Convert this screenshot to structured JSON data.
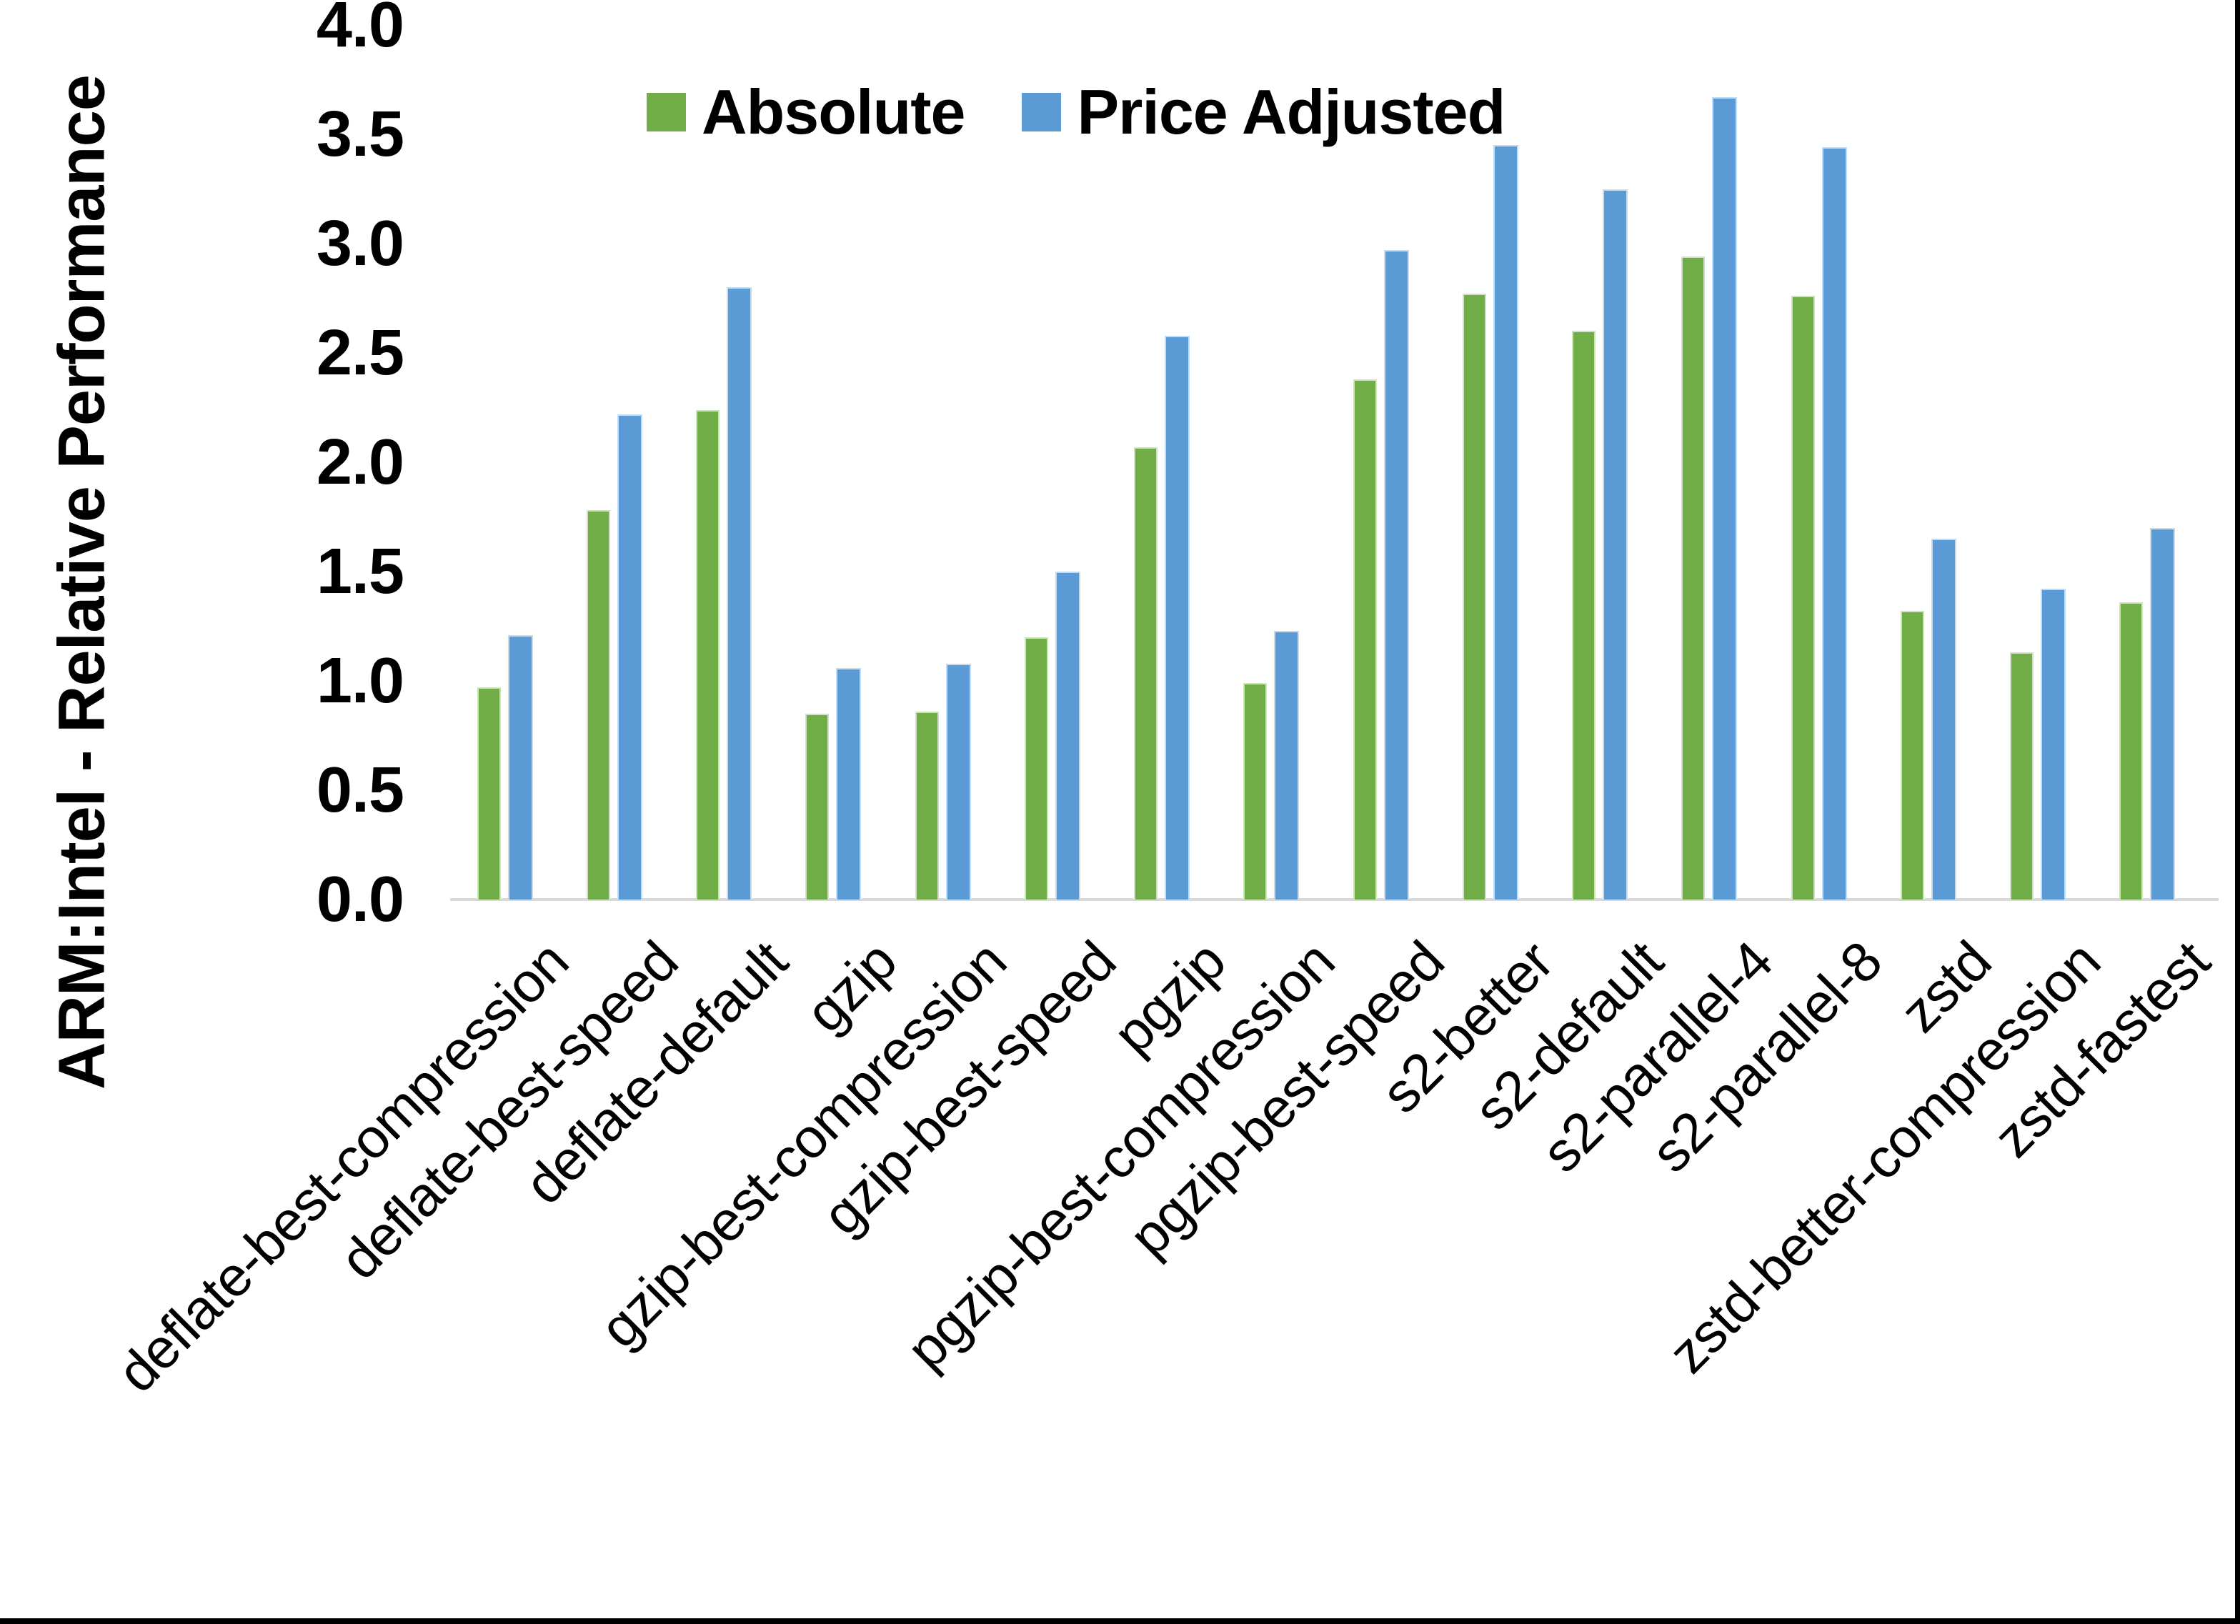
{
  "chart_data": {
    "type": "bar",
    "title": "",
    "xlabel": "",
    "ylabel": "ARM:Intel - Relative Performance",
    "ylim": [
      0,
      4.0
    ],
    "ytick_step": 0.5,
    "ytick_labels": [
      "4.0",
      "3.5",
      "3.0",
      "2.5",
      "2.0",
      "1.5",
      "1.0",
      "0.5",
      "0.0"
    ],
    "grid": false,
    "legend_position": "top-center",
    "categories": [
      "deflate-best-compression",
      "deflate-best-speed",
      "deflate-default",
      "gzip",
      "gzip-best-compression",
      "gzip-best-speed",
      "pgzip",
      "pgzip-best-compression",
      "pgzip-best-speed",
      "s2-better",
      "s2-default",
      "s2-parallel-4",
      "s2-parallel-8",
      "zstd",
      "zstd-better-compression",
      "zstd-fastest"
    ],
    "series": [
      {
        "name": "Absolute",
        "color": "#70AD47",
        "values": [
          0.97,
          1.78,
          2.24,
          0.85,
          0.86,
          1.2,
          2.07,
          0.99,
          2.38,
          2.77,
          2.6,
          2.94,
          2.76,
          1.32,
          1.13,
          1.36
        ]
      },
      {
        "name": "Price Adjusted",
        "color": "#5B9BD5",
        "values": [
          1.21,
          2.22,
          2.8,
          1.06,
          1.08,
          1.5,
          2.58,
          1.23,
          2.97,
          3.45,
          3.25,
          3.67,
          3.44,
          1.65,
          1.42,
          1.7
        ]
      }
    ]
  },
  "colors": {
    "background": "#FFFFFF",
    "axis_line": "#D9D9D9",
    "text": "#000000",
    "frame": "#000000"
  }
}
